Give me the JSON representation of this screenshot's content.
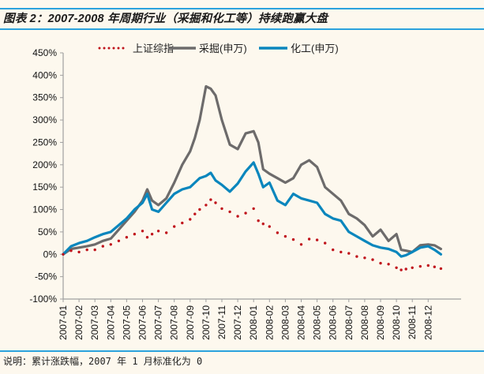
{
  "header": {
    "title": "图表 2：2007-2008 年周期行业（采掘和化工等）持续跑赢大盘"
  },
  "footer": {
    "note": "说明：累计涨跌幅，2007 年 1 月标准化为 0"
  },
  "colors": {
    "rule": "#2ba2dd",
    "shanghai": "#c0141c",
    "mining": "#6d6b6b",
    "chemical": "#0a86bd",
    "axis": "#a0a0a0",
    "background": "#fdf8ee"
  },
  "chart_data": {
    "type": "line",
    "title": "图表 2：2007-2008 年周期行业（采掘和化工等）持续跑赢大盘",
    "xlabel": "",
    "ylabel": "",
    "ylim": [
      -100,
      450
    ],
    "yticks": [
      -100,
      -50,
      0,
      50,
      100,
      150,
      200,
      250,
      300,
      350,
      400,
      450
    ],
    "ytick_labels": [
      "-100%",
      "-50%",
      "0%",
      "50%",
      "100%",
      "150%",
      "200%",
      "250%",
      "300%",
      "350%",
      "400%",
      "450%"
    ],
    "xlim": [
      0,
      23.8
    ],
    "categories": [
      "2007-01",
      "2007-02",
      "2007-03",
      "2007-04",
      "2007-05",
      "2007-06",
      "2007-07",
      "2007-08",
      "2007-09",
      "2007-10",
      "2007-11",
      "2007-12",
      "2008-01",
      "2008-02",
      "2008-03",
      "2008-04",
      "2008-05",
      "2008-06",
      "2008-07",
      "2008-08",
      "2008-09",
      "2008-10",
      "2008-11",
      "2008-12"
    ],
    "grid": false,
    "legend": {
      "placement": "top",
      "entries": [
        "上证综指",
        "采掘(申万)",
        "化工(申万)"
      ]
    },
    "x": [
      0,
      0.5,
      1,
      1.5,
      2,
      2.5,
      3,
      3.5,
      4,
      4.5,
      5,
      5.3,
      5.6,
      6,
      6.5,
      7,
      7.5,
      8,
      8.3,
      8.6,
      9,
      9.3,
      9.6,
      10,
      10.5,
      11,
      11.5,
      12,
      12.3,
      12.6,
      13,
      13.5,
      14,
      14.5,
      15,
      15.5,
      16,
      16.5,
      17,
      17.5,
      18,
      18.5,
      19,
      19.5,
      20,
      20.5,
      21,
      21.3,
      21.6,
      22,
      22.5,
      23,
      23.4,
      23.8
    ],
    "series": [
      {
        "name": "上证综指",
        "style": "dotted",
        "values": [
          0,
          8,
          5,
          10,
          10,
          18,
          22,
          30,
          38,
          45,
          52,
          38,
          45,
          52,
          48,
          62,
          70,
          78,
          90,
          100,
          110,
          122,
          115,
          102,
          95,
          85,
          92,
          102,
          75,
          68,
          62,
          48,
          40,
          33,
          22,
          34,
          32,
          25,
          10,
          5,
          2,
          -5,
          -8,
          -12,
          -20,
          -22,
          -30,
          -35,
          -33,
          -30,
          -27,
          -25,
          -28,
          -32
        ]
      },
      {
        "name": "采掘(申万)",
        "style": "solid",
        "values": [
          0,
          12,
          15,
          18,
          22,
          30,
          35,
          55,
          75,
          95,
          120,
          145,
          120,
          110,
          125,
          160,
          200,
          230,
          260,
          300,
          375,
          370,
          355,
          300,
          245,
          235,
          270,
          275,
          250,
          190,
          180,
          170,
          160,
          170,
          200,
          210,
          195,
          150,
          135,
          120,
          90,
          80,
          65,
          40,
          55,
          30,
          45,
          10,
          8,
          5,
          20,
          22,
          20,
          12
        ]
      },
      {
        "name": "化工(申万)",
        "style": "solid",
        "values": [
          0,
          18,
          25,
          30,
          38,
          45,
          50,
          65,
          80,
          100,
          115,
          135,
          100,
          95,
          115,
          135,
          145,
          150,
          160,
          170,
          175,
          182,
          165,
          155,
          140,
          158,
          185,
          205,
          180,
          150,
          160,
          120,
          110,
          135,
          125,
          120,
          115,
          90,
          80,
          75,
          50,
          40,
          30,
          20,
          15,
          12,
          5,
          -5,
          -2,
          5,
          15,
          18,
          10,
          0
        ]
      }
    ]
  }
}
